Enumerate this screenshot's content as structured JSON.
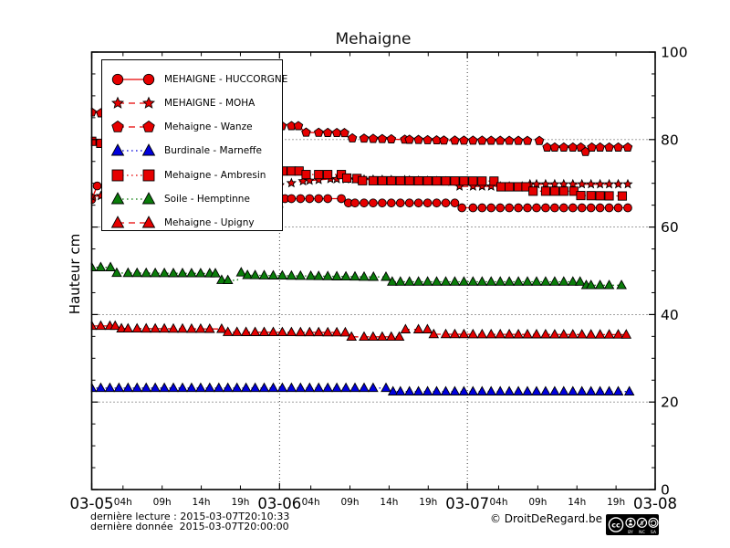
{
  "title": "Mehaigne",
  "ylabel": "Hauteur cm",
  "footnotes": {
    "derniere_lecture": "dernière lecture : 2015-03-07T20:10:33",
    "derniere_donnee": "dernière donnée  2015-03-07T20:00:00"
  },
  "footer": {
    "copyright": "© DroitDeRegard.be",
    "license": {
      "badge": "cc",
      "parts": [
        "BY",
        "NC",
        "SA"
      ]
    }
  },
  "chart_data": {
    "type": "line",
    "title": "Mehaigne",
    "xlabel": "",
    "ylabel": "Hauteur cm",
    "ylim": [
      0,
      100
    ],
    "grid": {
      "horizontal_values": [
        20,
        40,
        60,
        80
      ],
      "vertical_hours": [
        24,
        48
      ],
      "style": "dotted"
    },
    "legend_position": "upper left",
    "x_axis": {
      "start": "2015-03-05 00:00",
      "end": "2015-03-08 00:00",
      "span_hours": 72,
      "major_ticks": [
        {
          "t": 0,
          "label": "03-05"
        },
        {
          "t": 24,
          "label": "03-06"
        },
        {
          "t": 48,
          "label": "03-07"
        },
        {
          "t": 72,
          "label": "03-08"
        }
      ],
      "minor_ticks": [
        {
          "t": 4,
          "label": "04h"
        },
        {
          "t": 9,
          "label": "09h"
        },
        {
          "t": 14,
          "label": "14h"
        },
        {
          "t": 19,
          "label": "19h"
        },
        {
          "t": 28,
          "label": "04h"
        },
        {
          "t": 33,
          "label": "09h"
        },
        {
          "t": 38,
          "label": "14h"
        },
        {
          "t": 43,
          "label": "19h"
        },
        {
          "t": 52,
          "label": "04h"
        },
        {
          "t": 57,
          "label": "09h"
        },
        {
          "t": 62,
          "label": "14h"
        },
        {
          "t": 67,
          "label": "19h"
        }
      ]
    },
    "y_axis": {
      "major_ticks": [
        0,
        20,
        40,
        60,
        80,
        100
      ],
      "minor_step": 5,
      "labels_side": "right"
    },
    "marker_interval_hours": 1.16,
    "series": [
      {
        "id": "huccorgne",
        "name": "MEHAIGNE - HUCCORGNE",
        "color": "#e60000",
        "marker": "circle",
        "line": "solid",
        "points": [
          [
            0,
            66.3
          ],
          [
            0.7,
            69.4
          ],
          [
            2.5,
            69.2
          ],
          [
            8,
            68.2
          ],
          [
            14,
            67.2
          ],
          [
            20,
            65.8
          ],
          [
            23.2,
            64.7
          ],
          [
            23.9,
            64.6
          ],
          [
            24.7,
            66.5
          ],
          [
            31.9,
            66.5
          ],
          [
            32.8,
            65.5
          ],
          [
            46.4,
            65.5
          ],
          [
            47.3,
            64.4
          ],
          [
            68.5,
            64.4
          ]
        ]
      },
      {
        "id": "moha",
        "name": "MEHAIGNE - MOHA",
        "color": "#e60000",
        "marker": "star",
        "line": "dashed",
        "points": [
          [
            0,
            67.0
          ],
          [
            6,
            67.6
          ],
          [
            12,
            68.2
          ],
          [
            18,
            68.9
          ],
          [
            24,
            69.6
          ],
          [
            27,
            70.5
          ],
          [
            30.5,
            71.0
          ],
          [
            40,
            70.7
          ],
          [
            46,
            70.4
          ],
          [
            47,
            69.3
          ],
          [
            55,
            69.3
          ],
          [
            56,
            69.8
          ],
          [
            68.5,
            69.8
          ]
        ]
      },
      {
        "id": "wanze",
        "name": "Mehaigne - Wanze",
        "color": "#e60000",
        "marker": "pentagon",
        "line": "dashed",
        "points": [
          [
            0,
            86.2
          ],
          [
            4,
            85.6
          ],
          [
            10,
            84.8
          ],
          [
            16,
            84.0
          ],
          [
            22,
            83.3
          ],
          [
            24.3,
            83.1
          ],
          [
            26.4,
            83.1
          ],
          [
            27.4,
            81.6
          ],
          [
            32.3,
            81.5
          ],
          [
            33.3,
            80.3
          ],
          [
            40,
            80.0
          ],
          [
            45,
            79.8
          ],
          [
            57.2,
            79.7
          ],
          [
            58.2,
            78.2
          ],
          [
            62.5,
            78.2
          ],
          [
            63.1,
            77.2
          ],
          [
            63.9,
            78.2
          ],
          [
            68.5,
            78.2
          ]
        ]
      },
      {
        "id": "marneffe",
        "name": "Burdinale - Marneffe",
        "color": "#0000dd",
        "marker": "triangle",
        "line": "dotted",
        "points": [
          [
            0,
            23.2
          ],
          [
            37.6,
            23.2
          ],
          [
            38.5,
            22.4
          ],
          [
            68.7,
            22.4
          ]
        ]
      },
      {
        "id": "ambresin",
        "name": "Mehaigne - Ambresin",
        "color": "#e60000",
        "marker": "square",
        "line": "dotted",
        "points": [
          [
            0,
            79.6
          ],
          [
            3,
            78.4
          ],
          [
            8,
            77.0
          ],
          [
            13,
            75.6
          ],
          [
            18,
            74.3
          ],
          [
            23,
            73.1
          ],
          [
            24.4,
            72.8
          ],
          [
            26.5,
            72.8
          ],
          [
            27.4,
            72.0
          ],
          [
            31.9,
            72.0
          ],
          [
            32.6,
            71.2
          ],
          [
            33.9,
            71.1
          ],
          [
            34.6,
            70.6
          ],
          [
            51.4,
            70.5
          ],
          [
            52.3,
            69.2
          ],
          [
            55.5,
            69.2
          ],
          [
            56.4,
            68.2
          ],
          [
            61.6,
            68.2
          ],
          [
            62.5,
            67.2
          ],
          [
            67.8,
            67.1
          ]
        ]
      },
      {
        "id": "hemptinne",
        "name": "Soile - Hemptinne",
        "color": "#0a7d0a",
        "marker": "triangle",
        "line": "dotted",
        "points": [
          [
            0,
            50.8
          ],
          [
            2.4,
            50.8
          ],
          [
            3.2,
            49.5
          ],
          [
            15.8,
            49.4
          ],
          [
            16.6,
            47.9
          ],
          [
            18.6,
            47.8
          ],
          [
            19.1,
            49.6
          ],
          [
            19.9,
            49.0
          ],
          [
            28,
            48.8
          ],
          [
            36,
            48.6
          ],
          [
            37.6,
            48.6
          ],
          [
            38.4,
            47.5
          ],
          [
            62.4,
            47.5
          ],
          [
            63.2,
            46.7
          ],
          [
            67.7,
            46.7
          ]
        ]
      },
      {
        "id": "upigny",
        "name": "Mehaigne - Upigny",
        "color": "#e60000",
        "marker": "triangle",
        "line": "dashed",
        "points": [
          [
            0,
            37.4
          ],
          [
            3.0,
            37.4
          ],
          [
            3.8,
            36.8
          ],
          [
            16.6,
            36.7
          ],
          [
            17.4,
            36.0
          ],
          [
            32.4,
            35.9
          ],
          [
            33.2,
            34.9
          ],
          [
            39.3,
            34.9
          ],
          [
            40.1,
            36.6
          ],
          [
            42.9,
            36.6
          ],
          [
            43.7,
            35.5
          ],
          [
            68.3,
            35.4
          ]
        ]
      }
    ]
  }
}
